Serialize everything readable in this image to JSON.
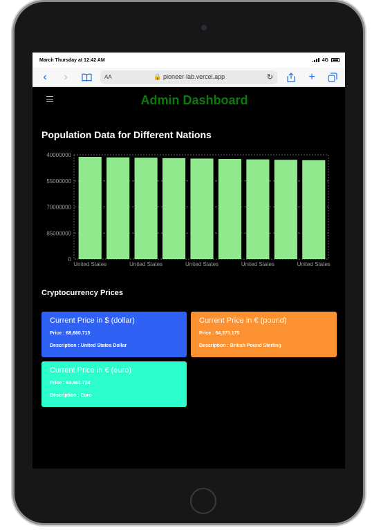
{
  "status_bar": {
    "time": "March Thursday at 12:42 AM",
    "network": "4G"
  },
  "browser": {
    "aa": "AA",
    "url": "pioneer-lab.vercel.app"
  },
  "app": {
    "title": "Admin Dashboard"
  },
  "population": {
    "title": "Population Data for Different Nations"
  },
  "chart_data": {
    "type": "bar",
    "title": "Population Data for Different Nations",
    "categories": [
      "United States",
      "United States",
      "United States",
      "United States",
      "United States",
      "United States",
      "United States",
      "United States",
      "United States"
    ],
    "values": [
      98000000,
      97500000,
      97200000,
      96800000,
      96400000,
      96000000,
      95600000,
      95200000,
      94800000
    ],
    "y_ticks": [
      "40000000",
      "55000000",
      "70000000",
      "85000000",
      "0"
    ],
    "x_tick_labels": [
      "United States",
      "United States",
      "United States",
      "United States",
      "United States"
    ],
    "grid": true,
    "bar_color": "#90ea8d"
  },
  "crypto": {
    "title": "Cryptocurrency Prices",
    "cards": [
      {
        "title": "Current Price in $ (dollar)",
        "price": "Price : 68,660.715",
        "description": "Description : United States Dollar",
        "color": "#2f62f4"
      },
      {
        "title": "Current Price in € (pound)",
        "price": "Price : 54,373.175",
        "description": "Description : British Pound Sterling",
        "color": "#fb9130"
      },
      {
        "title": "Current Price in € (euro)",
        "price": "Price : 63,461.734",
        "description": "Description : Euro",
        "color": "#2bfdcd"
      }
    ]
  }
}
